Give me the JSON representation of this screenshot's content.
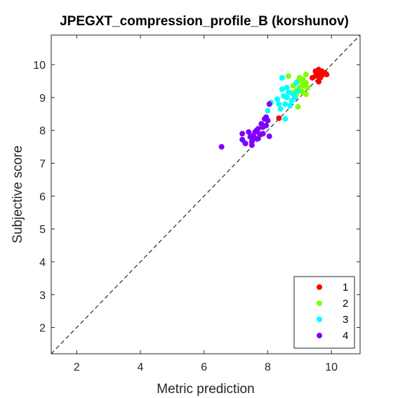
{
  "chart_data": {
    "type": "scatter",
    "title": "JPEGXT_compression_profile_B (korshunov)",
    "xlabel": "Metric prediction",
    "ylabel": "Subjective score",
    "xlim": [
      1.2,
      10.9
    ],
    "ylim": [
      1.2,
      10.9
    ],
    "xticks": [
      2,
      4,
      6,
      8,
      10
    ],
    "yticks": [
      2,
      3,
      4,
      5,
      6,
      7,
      8,
      9,
      10
    ],
    "grid": false,
    "legend_position": "bottom-right",
    "reference_line": "y = x (dashed)",
    "series": [
      {
        "name": "1",
        "color": "#ff0000",
        "points": [
          [
            8.35,
            8.37
          ],
          [
            9.4,
            9.6
          ],
          [
            9.5,
            9.65
          ],
          [
            9.55,
            9.7
          ],
          [
            9.6,
            9.75
          ],
          [
            9.7,
            9.8
          ],
          [
            9.75,
            9.72
          ],
          [
            9.65,
            9.6
          ],
          [
            9.8,
            9.75
          ],
          [
            9.6,
            9.85
          ],
          [
            9.5,
            9.8
          ],
          [
            9.7,
            9.68
          ],
          [
            9.6,
            9.48
          ],
          [
            9.85,
            9.7
          ]
        ]
      },
      {
        "name": "2",
        "color": "#80ff00",
        "points": [
          [
            8.65,
            9.65
          ],
          [
            8.9,
            9.1
          ],
          [
            9.0,
            9.3
          ],
          [
            9.1,
            9.4
          ],
          [
            8.85,
            9.0
          ],
          [
            9.0,
            9.6
          ],
          [
            9.2,
            9.7
          ],
          [
            9.15,
            9.35
          ],
          [
            8.95,
            8.72
          ],
          [
            9.05,
            9.2
          ],
          [
            9.2,
            9.45
          ],
          [
            9.1,
            9.55
          ],
          [
            8.8,
            9.35
          ],
          [
            8.75,
            9.15
          ],
          [
            9.25,
            9.3
          ],
          [
            8.9,
            9.2
          ],
          [
            9.0,
            9.25
          ],
          [
            9.1,
            9.15
          ],
          [
            9.2,
            9.1
          ],
          [
            8.95,
            9.5
          ]
        ]
      },
      {
        "name": "3",
        "color": "#00ffff",
        "points": [
          [
            7.25,
            7.65
          ],
          [
            8.0,
            8.6
          ],
          [
            8.1,
            8.85
          ],
          [
            8.3,
            8.95
          ],
          [
            8.4,
            8.65
          ],
          [
            8.45,
            9.25
          ],
          [
            8.5,
            9.05
          ],
          [
            8.55,
            8.35
          ],
          [
            8.6,
            9.0
          ],
          [
            8.7,
            8.75
          ],
          [
            8.8,
            9.1
          ],
          [
            8.85,
            9.0
          ],
          [
            8.9,
            9.45
          ],
          [
            8.45,
            9.6
          ],
          [
            8.65,
            9.15
          ],
          [
            8.75,
            8.9
          ],
          [
            8.55,
            8.8
          ],
          [
            8.35,
            8.8
          ],
          [
            8.6,
            9.3
          ],
          [
            8.95,
            9.2
          ]
        ]
      },
      {
        "name": "4",
        "color": "#8000ff",
        "points": [
          [
            6.55,
            7.5
          ],
          [
            7.2,
            7.9
          ],
          [
            7.2,
            7.72
          ],
          [
            7.3,
            7.6
          ],
          [
            7.4,
            7.95
          ],
          [
            7.45,
            7.8
          ],
          [
            7.5,
            7.65
          ],
          [
            7.55,
            7.85
          ],
          [
            7.6,
            7.75
          ],
          [
            7.65,
            8.0
          ],
          [
            7.7,
            8.05
          ],
          [
            7.75,
            7.88
          ],
          [
            7.8,
            8.2
          ],
          [
            7.85,
            8.1
          ],
          [
            7.9,
            8.35
          ],
          [
            7.95,
            8.4
          ],
          [
            8.0,
            8.3
          ],
          [
            8.05,
            7.82
          ],
          [
            8.05,
            8.8
          ],
          [
            7.7,
            7.75
          ],
          [
            7.85,
            7.9
          ],
          [
            7.6,
            7.95
          ],
          [
            7.95,
            8.15
          ],
          [
            7.5,
            7.55
          ]
        ]
      }
    ]
  }
}
